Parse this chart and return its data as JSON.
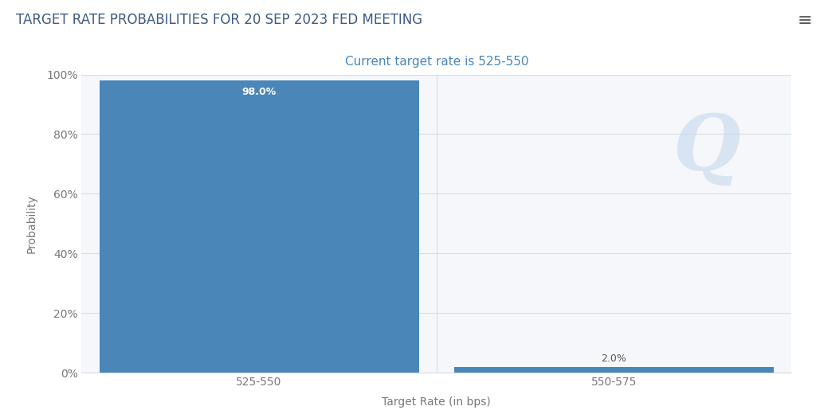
{
  "title": "TARGET RATE PROBABILITIES FOR 20 SEP 2023 FED MEETING",
  "subtitle": "Current target rate is 525-550",
  "categories": [
    "525-550",
    "550-575"
  ],
  "values": [
    98.0,
    2.0
  ],
  "bar_color": "#4a86b8",
  "bar_labels": [
    "98.0%",
    "2.0%"
  ],
  "xlabel": "Target Rate (in bps)",
  "ylabel": "Probability",
  "ylim": [
    0,
    100
  ],
  "yticks": [
    0,
    20,
    40,
    60,
    80,
    100
  ],
  "ytick_labels": [
    "0%",
    "20%",
    "40%",
    "60%",
    "80%",
    "100%"
  ],
  "background_color": "#ffffff",
  "plot_bg_color": "#f5f7fa",
  "grid_color": "#d8dde6",
  "title_fontsize": 12,
  "subtitle_fontsize": 11,
  "subtitle_color": "#4a86b8",
  "axis_label_fontsize": 10,
  "tick_fontsize": 10,
  "bar_label_fontsize": 9,
  "bar_label_color_inside": "#ffffff",
  "bar_label_color_outside": "#555555",
  "title_color": "#3d5a80",
  "watermark_text": "Q",
  "watermark_color": "#c5d8ec",
  "bar_width": 0.45,
  "x_positions": [
    0.25,
    0.75
  ],
  "xlim": [
    0,
    1
  ]
}
